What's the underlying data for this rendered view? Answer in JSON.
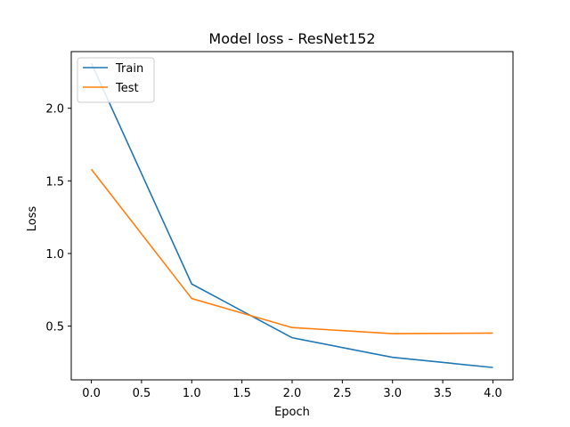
{
  "chart_data": {
    "type": "line",
    "title": "Model loss - ResNet152",
    "xlabel": "Epoch",
    "ylabel": "Loss",
    "x": [
      0,
      1,
      2,
      3,
      4
    ],
    "series": [
      {
        "name": "Train",
        "values": [
          2.31,
          0.79,
          0.42,
          0.285,
          0.215
        ],
        "color": "#1f77b4"
      },
      {
        "name": "Test",
        "values": [
          1.58,
          0.69,
          0.49,
          0.448,
          0.452
        ],
        "color": "#ff7f0e"
      }
    ],
    "xlim": [
      -0.2,
      4.2
    ],
    "ylim": [
      0.13,
      2.39
    ],
    "xticks": [
      0.0,
      0.5,
      1.0,
      1.5,
      2.0,
      2.5,
      3.0,
      3.5,
      4.0
    ],
    "xtick_labels": [
      "0.0",
      "0.5",
      "1.0",
      "1.5",
      "2.0",
      "2.5",
      "3.0",
      "3.5",
      "4.0"
    ],
    "yticks": [
      0.5,
      1.0,
      1.5,
      2.0
    ],
    "ytick_labels": [
      "0.5",
      "1.0",
      "1.5",
      "2.0"
    ],
    "grid": false,
    "legend_position": "top-left"
  }
}
